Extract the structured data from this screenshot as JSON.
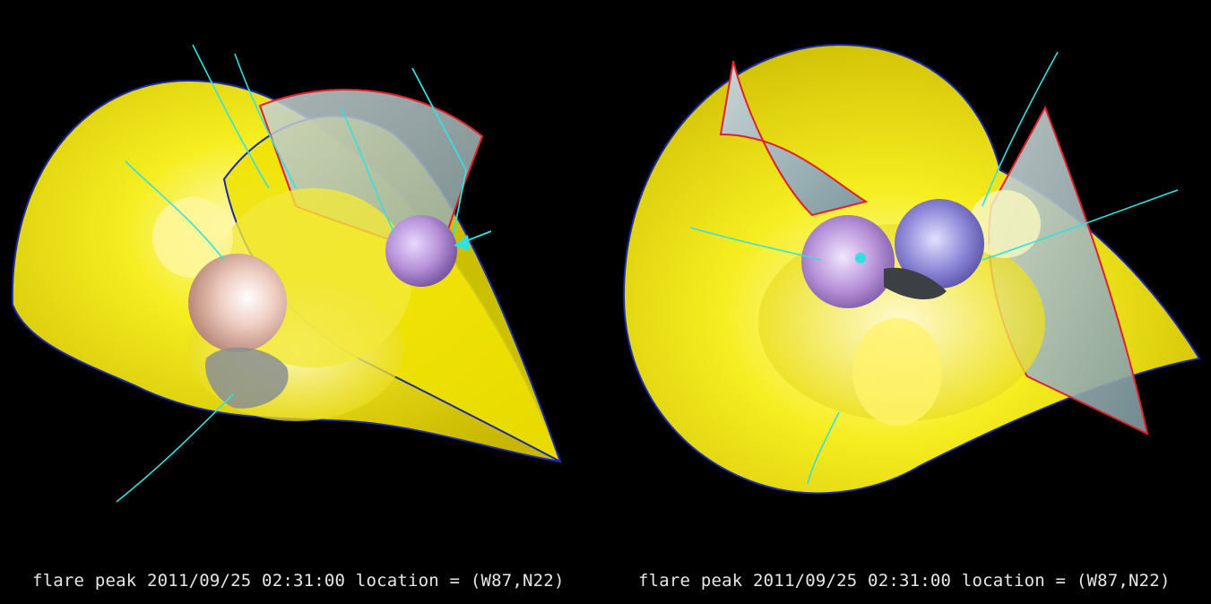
{
  "panels": [
    {
      "caption": "flare peak 2011/09/25 02:31:00 location = (W87,N22)"
    },
    {
      "caption": "flare peak 2011/09/25 02:31:00 location = (W87,N22)"
    }
  ],
  "colors": {
    "background": "#000000",
    "surface": "#f2ea00",
    "surface_shade": "#c9b800",
    "field_line": "#33e0e0",
    "boundary_blue": "#1a2aa8",
    "boundary_red": "#e0202a",
    "slab": "#9ab0b0",
    "sphere_pink": "#e0b4a8",
    "sphere_violet": "#b08ad0",
    "arrow": "#33e0e0"
  }
}
